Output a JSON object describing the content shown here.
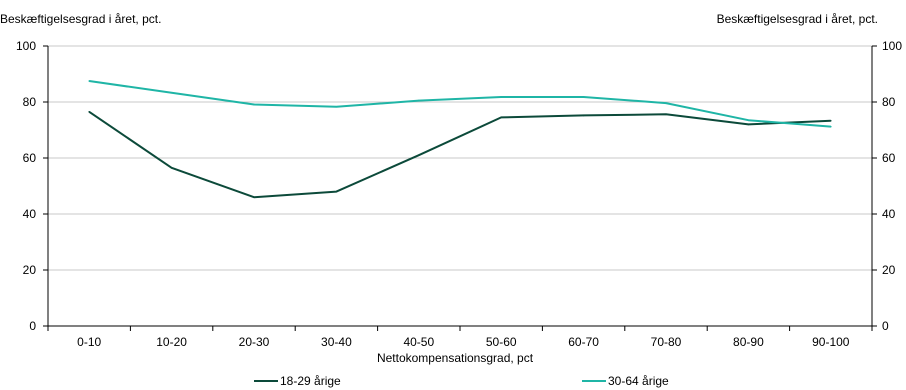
{
  "chart_data": {
    "type": "line",
    "ylabel_left": "Beskæftigelsesgrad i året, pct.",
    "ylabel_right": "Beskæftigelsesgrad i året, pct.",
    "xlabel": "Nettokompensationsgrad, pct",
    "categories": [
      "0-10",
      "10-20",
      "20-30",
      "30-40",
      "40-50",
      "50-60",
      "60-70",
      "70-80",
      "80-90",
      "90-100"
    ],
    "ylim": [
      0,
      100
    ],
    "yticks": [
      0,
      20,
      40,
      60,
      80,
      100
    ],
    "grid": true,
    "legend_position": "bottom",
    "series": [
      {
        "name": "18-29 årige",
        "color": "#0c4a3a",
        "values": [
          76.5,
          56.5,
          46,
          48,
          61,
          74.5,
          75.2,
          75.6,
          72,
          73.3
        ]
      },
      {
        "name": "30-64 årige",
        "color": "#1fb5a6",
        "values": [
          87.5,
          83.3,
          79.1,
          78.3,
          80.5,
          81.8,
          81.8,
          79.6,
          73.5,
          71.2
        ]
      }
    ]
  }
}
